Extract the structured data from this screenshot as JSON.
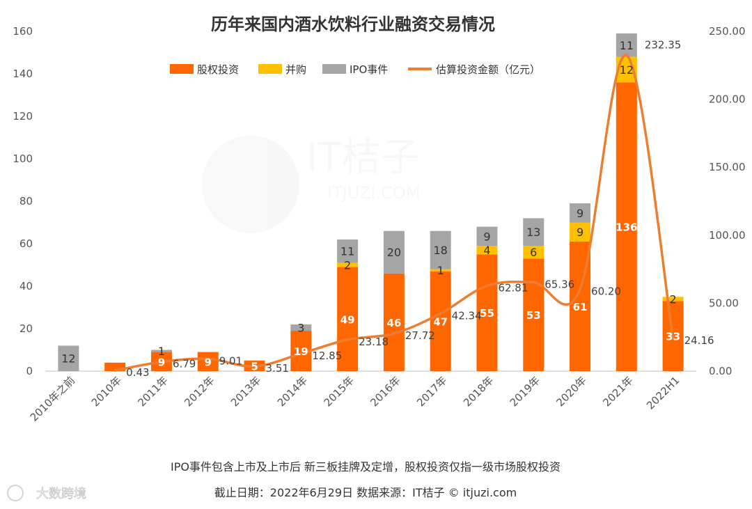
{
  "colors": {
    "equity": "#FF6600",
    "ma": "#FFC000",
    "ipo": "#A5A5A5",
    "line": "#ED7D31",
    "grid": "#E0E0E0",
    "axis": "#BFBFBF"
  },
  "chart_data": {
    "type": "bar",
    "stacked": true,
    "title": "历年来国内酒水饮料行业融资交易情况",
    "categories": [
      "2010年之前",
      "2010年",
      "2011年",
      "2012年",
      "2013年",
      "2014年",
      "2015年",
      "2016年",
      "2017年",
      "2018年",
      "2019年",
      "2020年",
      "2021年",
      "2022H1"
    ],
    "series": [
      {
        "name": "股权投资",
        "kind": "bar",
        "axis": "left",
        "values": [
          0,
          4,
          9,
          9,
          5,
          19,
          49,
          46,
          47,
          55,
          53,
          61,
          136,
          33
        ]
      },
      {
        "name": "并购",
        "kind": "bar",
        "axis": "left",
        "values": [
          0,
          0,
          0,
          0,
          0,
          0,
          2,
          0,
          1,
          4,
          6,
          9,
          12,
          2
        ]
      },
      {
        "name": "IPO事件",
        "kind": "bar",
        "axis": "left",
        "values": [
          12,
          0,
          1,
          0,
          0,
          3,
          11,
          20,
          18,
          9,
          13,
          9,
          11,
          0
        ]
      },
      {
        "name": "估算投资金额（亿元）",
        "kind": "line",
        "axis": "right",
        "values": [
          null,
          0.43,
          6.79,
          9.01,
          3.51,
          12.85,
          23.18,
          27.72,
          42.34,
          62.81,
          65.36,
          60.2,
          232.35,
          24.16
        ]
      }
    ],
    "bar_labels": {
      "股权投资": [
        "",
        "",
        "9",
        "9",
        "5",
        "19",
        "49",
        "46",
        "47",
        "55",
        "53",
        "61",
        "136",
        "33"
      ],
      "并购": [
        "",
        "",
        "",
        "",
        "",
        "",
        "2",
        "",
        "1",
        "4",
        "6",
        "9",
        "12",
        "2"
      ],
      "IPO事件": [
        "12",
        "",
        "1",
        "",
        "",
        "3",
        "11",
        "20",
        "18",
        "9",
        "13",
        "9",
        "11",
        ""
      ]
    },
    "line_labels": [
      "",
      "0.43",
      "6.79",
      "9.01",
      "3.51",
      "12.85",
      "23.18",
      "27.72",
      "42.34",
      "62.81",
      "65.36",
      "60.20",
      "232.35",
      "24.16"
    ],
    "ylim_left": [
      0,
      160
    ],
    "yticks_left": [
      "0",
      "20",
      "40",
      "60",
      "80",
      "100",
      "120",
      "140",
      "160"
    ],
    "ylim_right": [
      0,
      250
    ],
    "yticks_right": [
      "0.00",
      "50.00",
      "100.00",
      "150.00",
      "200.00",
      "250.00"
    ],
    "legend_position": "top-center",
    "grid": false
  },
  "footnotes": {
    "line1": "IPO事件包含上市及上市后  新三板挂牌及定增，股权投资仅指一级市场股权投资",
    "line2": "截止日期：2022年6月29日      数据来源：IT桔子 © itjuzi.com"
  },
  "watermark": {
    "logo_text": "IT桔子",
    "logo_sub": "ITJUZI.COM",
    "corner_text": "大数跨境"
  }
}
